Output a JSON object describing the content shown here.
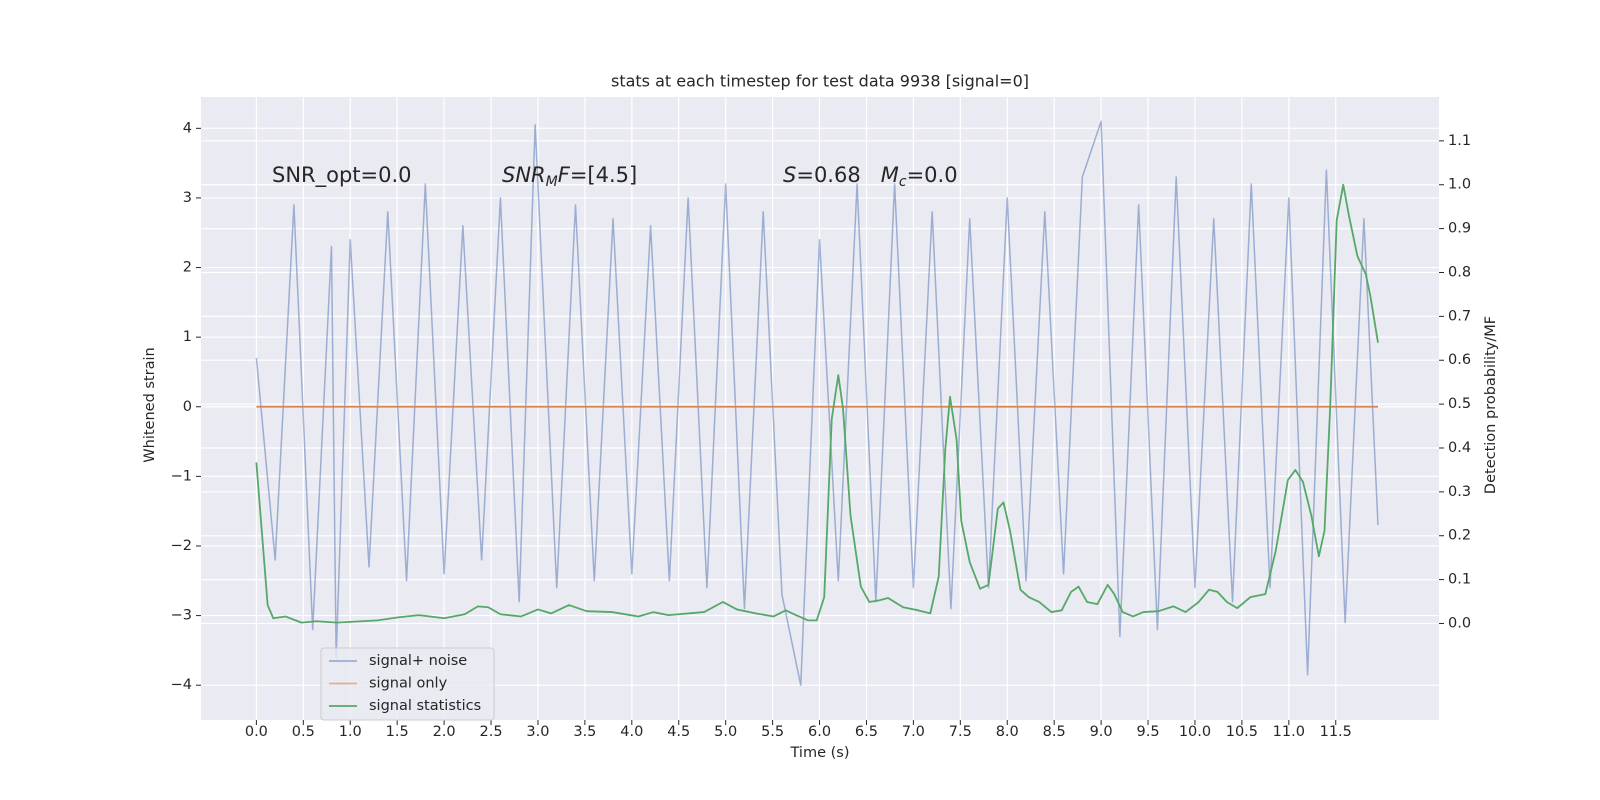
{
  "chart_data": {
    "type": "line",
    "title": "stats at each timestep for test data 9938 [signal=0]",
    "x_label": "Time (s)",
    "y_label": "Whitened strain",
    "y2_label": "Detection probability/MF",
    "xlim": [
      -0.59,
      12.6
    ],
    "ylim": [
      -4.5,
      4.45
    ],
    "y2lim": [
      -0.22,
      1.2
    ],
    "grid": true,
    "legend": "lower left",
    "xticks": [
      {
        "value": 0,
        "label": "0.0"
      },
      0.5,
      {
        "value": 1,
        "label": "1.0"
      },
      1.5,
      {
        "value": 2,
        "label": "2.0"
      },
      2.5,
      {
        "value": 3,
        "label": "3.0"
      },
      3.5,
      {
        "value": 4,
        "label": "4.0"
      },
      4.5,
      {
        "value": 5,
        "label": "5.0"
      },
      5.5,
      {
        "value": 6,
        "label": "6.0"
      },
      6.5,
      {
        "value": 7,
        "label": "7.0"
      },
      7.5,
      {
        "value": 8,
        "label": "8.0"
      },
      8.5,
      {
        "value": 9,
        "label": "9.0"
      },
      9.5,
      {
        "value": 10,
        "label": "10.0"
      },
      10.5,
      {
        "value": 11,
        "label": "11.0"
      },
      11.5
    ],
    "yticks": [
      {
        "value": -4,
        "label": "−4"
      },
      {
        "value": -3,
        "label": "−3"
      },
      {
        "value": -2,
        "label": "−2"
      },
      {
        "value": -1,
        "label": "−1"
      },
      0,
      1,
      2,
      3,
      4
    ],
    "y2ticks": [
      {
        "value": 0,
        "label": "0.0"
      },
      0.1,
      0.2,
      0.3,
      0.4,
      0.5,
      0.6,
      0.7,
      0.8,
      0.9,
      {
        "value": 1,
        "label": "1.0"
      },
      1.1
    ],
    "annotations": [
      [
        "SNR_opt=0.0"
      ],
      [
        "SNR",
        "M",
        "F",
        "=[4.5]"
      ],
      [
        "S",
        "=0.68   ",
        "M",
        "c",
        "=0.0"
      ]
    ],
    "series": [
      {
        "name": "signal+ noise",
        "color": "#4c72b0",
        "axis": "y",
        "x": [
          0.0,
          0.2,
          0.4,
          0.6,
          0.8,
          0.85,
          1.0,
          1.2,
          1.4,
          1.6,
          1.8,
          2.0,
          2.2,
          2.4,
          2.6,
          2.8,
          2.97,
          3.2,
          3.4,
          3.6,
          3.8,
          4.0,
          4.2,
          4.4,
          4.6,
          4.8,
          5.0,
          5.2,
          5.4,
          5.6,
          5.8,
          6.0,
          6.2,
          6.4,
          6.6,
          6.8,
          7.0,
          7.2,
          7.4,
          7.6,
          7.8,
          8.0,
          8.2,
          8.4,
          8.6,
          8.8,
          9.0,
          9.2,
          9.4,
          9.6,
          9.8,
          10.0,
          10.2,
          10.4,
          10.6,
          10.8,
          11.0,
          11.2,
          11.4,
          11.6,
          11.8,
          11.95
        ],
        "values": [
          0.7,
          -2.2,
          2.9,
          -3.2,
          2.3,
          -3.6,
          2.4,
          -2.3,
          2.8,
          -2.5,
          3.2,
          -2.4,
          2.6,
          -2.2,
          3.0,
          -2.8,
          4.05,
          -2.6,
          2.9,
          -2.5,
          2.7,
          -2.4,
          2.6,
          -2.5,
          3.0,
          -2.6,
          3.2,
          -2.9,
          2.8,
          -2.7,
          -4.0,
          2.4,
          -2.5,
          3.2,
          -2.8,
          3.2,
          -2.6,
          2.8,
          -2.9,
          2.7,
          -2.6,
          3.0,
          -2.5,
          2.8,
          -2.4,
          3.3,
          4.1,
          -3.3,
          2.9,
          -3.2,
          3.3,
          -2.6,
          2.7,
          -2.8,
          3.2,
          -2.6,
          3.0,
          -3.85,
          3.4,
          -3.1,
          2.7,
          -1.7
        ]
      },
      {
        "name": "signal only",
        "color": "#dd8452",
        "axis": "y",
        "x": [
          0.0,
          11.95
        ],
        "values": [
          0,
          0
        ]
      },
      {
        "name": "signal statistics",
        "color": "#55a868",
        "axis": "y2",
        "x": [
          0,
          0.12,
          0.18,
          0.31,
          0.48,
          0.64,
          0.86,
          1.29,
          1.51,
          1.73,
          2.0,
          2.22,
          2.36,
          2.47,
          2.6,
          2.82,
          3.0,
          3.14,
          3.33,
          3.52,
          3.79,
          4.07,
          4.23,
          4.39,
          4.77,
          4.97,
          5.12,
          5.32,
          5.51,
          5.64,
          5.75,
          5.88,
          5.97,
          6.05,
          6.13,
          6.2,
          6.25,
          6.33,
          6.44,
          6.53,
          6.64,
          6.73,
          6.89,
          7.05,
          7.18,
          7.27,
          7.34,
          7.39,
          7.46,
          7.51,
          7.6,
          7.71,
          7.8,
          7.9,
          7.96,
          8.03,
          8.14,
          8.23,
          8.34,
          8.47,
          8.58,
          8.68,
          8.76,
          8.85,
          8.96,
          9.07,
          9.14,
          9.23,
          9.34,
          9.45,
          9.61,
          9.77,
          9.9,
          10.04,
          10.15,
          10.24,
          10.34,
          10.45,
          10.59,
          10.75,
          10.86,
          10.99,
          11.07,
          11.15,
          11.24,
          11.32,
          11.38,
          11.44,
          11.51,
          11.58,
          11.64,
          11.73,
          11.82,
          11.87,
          11.95
        ],
        "values": [
          0.367,
          0.042,
          0.012,
          0.016,
          0.002,
          0.005,
          0.002,
          0.007,
          0.014,
          0.019,
          0.012,
          0.021,
          0.039,
          0.037,
          0.021,
          0.016,
          0.032,
          0.023,
          0.042,
          0.028,
          0.026,
          0.016,
          0.026,
          0.019,
          0.026,
          0.049,
          0.032,
          0.023,
          0.016,
          0.03,
          0.019,
          0.007,
          0.007,
          0.06,
          0.466,
          0.566,
          0.49,
          0.246,
          0.084,
          0.049,
          0.053,
          0.058,
          0.037,
          0.03,
          0.023,
          0.107,
          0.397,
          0.517,
          0.42,
          0.234,
          0.14,
          0.079,
          0.088,
          0.262,
          0.276,
          0.211,
          0.077,
          0.06,
          0.049,
          0.026,
          0.03,
          0.072,
          0.084,
          0.049,
          0.044,
          0.088,
          0.067,
          0.026,
          0.016,
          0.026,
          0.028,
          0.039,
          0.026,
          0.049,
          0.077,
          0.072,
          0.049,
          0.035,
          0.06,
          0.067,
          0.165,
          0.327,
          0.35,
          0.323,
          0.246,
          0.153,
          0.211,
          0.49,
          0.919,
          1.0,
          0.93,
          0.838,
          0.796,
          0.745,
          0.64
        ]
      }
    ]
  }
}
